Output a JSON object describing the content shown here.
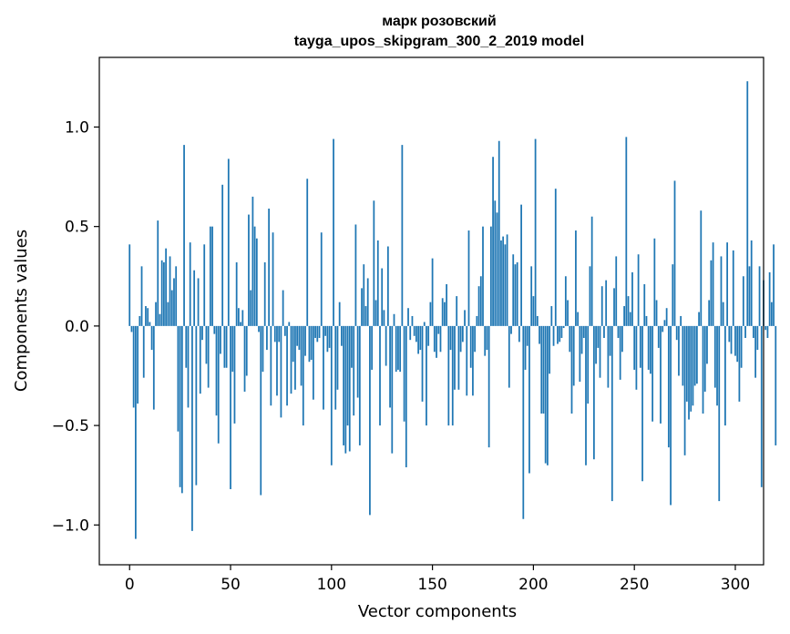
{
  "chart_data": {
    "type": "bar",
    "title_line1": "марк розовский",
    "title_line2": "tayga_upos_skipgram_300_2_2019 model",
    "xlabel": "Vector components",
    "ylabel": "Components values",
    "xlim": [
      -15,
      314
    ],
    "ylim": [
      -1.2,
      1.35
    ],
    "grid": false,
    "bar_color": "#1f77b4",
    "xticks": [
      {
        "value": 0,
        "label": "0"
      },
      {
        "value": 50,
        "label": "50"
      },
      {
        "value": 100,
        "label": "100"
      },
      {
        "value": 150,
        "label": "150"
      },
      {
        "value": 200,
        "label": "200"
      },
      {
        "value": 250,
        "label": "250"
      },
      {
        "value": 300,
        "label": "300"
      }
    ],
    "yticks": [
      {
        "value": -1.0,
        "label": "−1.0"
      },
      {
        "value": -0.5,
        "label": "−0.5"
      },
      {
        "value": 0.0,
        "label": "0.0"
      },
      {
        "value": 0.5,
        "label": "0.5"
      },
      {
        "value": 1.0,
        "label": "1.0"
      }
    ],
    "values": [
      0.41,
      -0.03,
      -0.41,
      -1.07,
      -0.39,
      0.05,
      0.3,
      -0.26,
      0.1,
      0.09,
      0.02,
      -0.12,
      -0.42,
      0.12,
      0.53,
      0.06,
      0.33,
      0.32,
      0.39,
      0.12,
      0.35,
      0.18,
      0.24,
      0.3,
      -0.53,
      -0.81,
      -0.84,
      0.91,
      -0.21,
      -0.41,
      0.42,
      -1.03,
      0.28,
      -0.8,
      0.24,
      -0.34,
      -0.07,
      0.41,
      -0.19,
      -0.31,
      0.5,
      0.5,
      -0.04,
      -0.45,
      -0.59,
      -0.14,
      0.71,
      -0.21,
      -0.21,
      0.84,
      -0.82,
      -0.23,
      -0.49,
      0.32,
      0.09,
      0.02,
      0.08,
      -0.33,
      -0.25,
      0.56,
      0.18,
      0.65,
      0.5,
      0.44,
      -0.03,
      -0.85,
      -0.23,
      0.32,
      -0.12,
      0.59,
      -0.4,
      0.47,
      -0.08,
      -0.35,
      -0.08,
      -0.46,
      0.18,
      -0.05,
      -0.4,
      0.02,
      -0.34,
      -0.18,
      -0.32,
      -0.1,
      -0.12,
      -0.3,
      -0.5,
      -0.15,
      0.74,
      -0.18,
      -0.17,
      -0.37,
      -0.06,
      -0.08,
      -0.06,
      0.47,
      -0.42,
      -0.05,
      -0.13,
      -0.11,
      -0.7,
      0.94,
      -0.42,
      -0.32,
      0.12,
      -0.1,
      -0.6,
      -0.64,
      -0.5,
      -0.63,
      -0.21,
      -0.45,
      0.51,
      -0.36,
      -0.6,
      0.19,
      0.31,
      0.1,
      0.24,
      -0.95,
      -0.22,
      0.63,
      0.13,
      0.43,
      -0.5,
      0.29,
      0.08,
      -0.2,
      0.4,
      -0.41,
      -0.64,
      0.06,
      -0.23,
      -0.22,
      -0.23,
      0.91,
      -0.48,
      -0.71,
      0.09,
      -0.07,
      0.05,
      -0.05,
      -0.08,
      -0.14,
      -0.12,
      -0.38,
      0.02,
      -0.5,
      -0.1,
      0.12,
      0.34,
      -0.13,
      -0.16,
      -0.04,
      -0.13,
      0.14,
      0.12,
      0.21,
      -0.5,
      -0.12,
      -0.5,
      -0.32,
      0.15,
      -0.32,
      -0.13,
      -0.08,
      0.08,
      -0.35,
      0.48,
      -0.21,
      -0.35,
      -0.13,
      0.05,
      0.2,
      0.25,
      0.5,
      -0.15,
      -0.12,
      -0.61,
      0.5,
      0.85,
      0.63,
      0.57,
      0.93,
      0.43,
      0.45,
      0.41,
      0.46,
      -0.31,
      -0.04,
      0.36,
      0.31,
      0.32,
      -0.08,
      0.61,
      -0.97,
      -0.22,
      -0.1,
      -0.74,
      0.3,
      0.15,
      0.94,
      0.05,
      -0.09,
      -0.44,
      -0.44,
      -0.69,
      -0.7,
      -0.24,
      0.1,
      -0.1,
      0.69,
      -0.09,
      -0.08,
      -0.06,
      -0.01,
      0.25,
      0.13,
      -0.13,
      -0.44,
      -0.3,
      0.48,
      0.07,
      -0.28,
      -0.14,
      -0.06,
      -0.7,
      -0.39,
      0.3,
      0.55,
      -0.67,
      -0.19,
      -0.11,
      -0.26,
      0.2,
      -0.06,
      0.23,
      -0.31,
      -0.15,
      -0.88,
      0.19,
      0.35,
      -0.06,
      -0.27,
      -0.13,
      0.1,
      0.95,
      0.15,
      0.07,
      0.27,
      -0.22,
      -0.32,
      0.36,
      -0.21,
      -0.78,
      0.21,
      0.05,
      -0.22,
      -0.24,
      -0.48,
      0.44,
      0.13,
      -0.11,
      -0.49,
      -0.03,
      0.03,
      0.09,
      -0.61,
      -0.9,
      0.31,
      0.73,
      -0.07,
      -0.25,
      0.05,
      -0.3,
      -0.65,
      -0.38,
      -0.47,
      -0.43,
      -0.4,
      -0.3,
      -0.29,
      0.07,
      0.58,
      -0.44,
      -0.33,
      -0.19,
      0.13,
      0.33,
      0.42,
      -0.31,
      -0.4,
      -0.88,
      0.35,
      0.12,
      -0.5,
      0.42,
      -0.08,
      -0.14,
      0.38,
      -0.15,
      -0.18,
      -0.38,
      -0.21,
      0.25,
      -0.06,
      1.23,
      0.3,
      0.43,
      -0.06,
      -0.26,
      -0.12,
      0.3,
      -0.81,
      0.23,
      -0.02,
      -0.06,
      0.27,
      0.12,
      0.41,
      -0.6
    ]
  }
}
